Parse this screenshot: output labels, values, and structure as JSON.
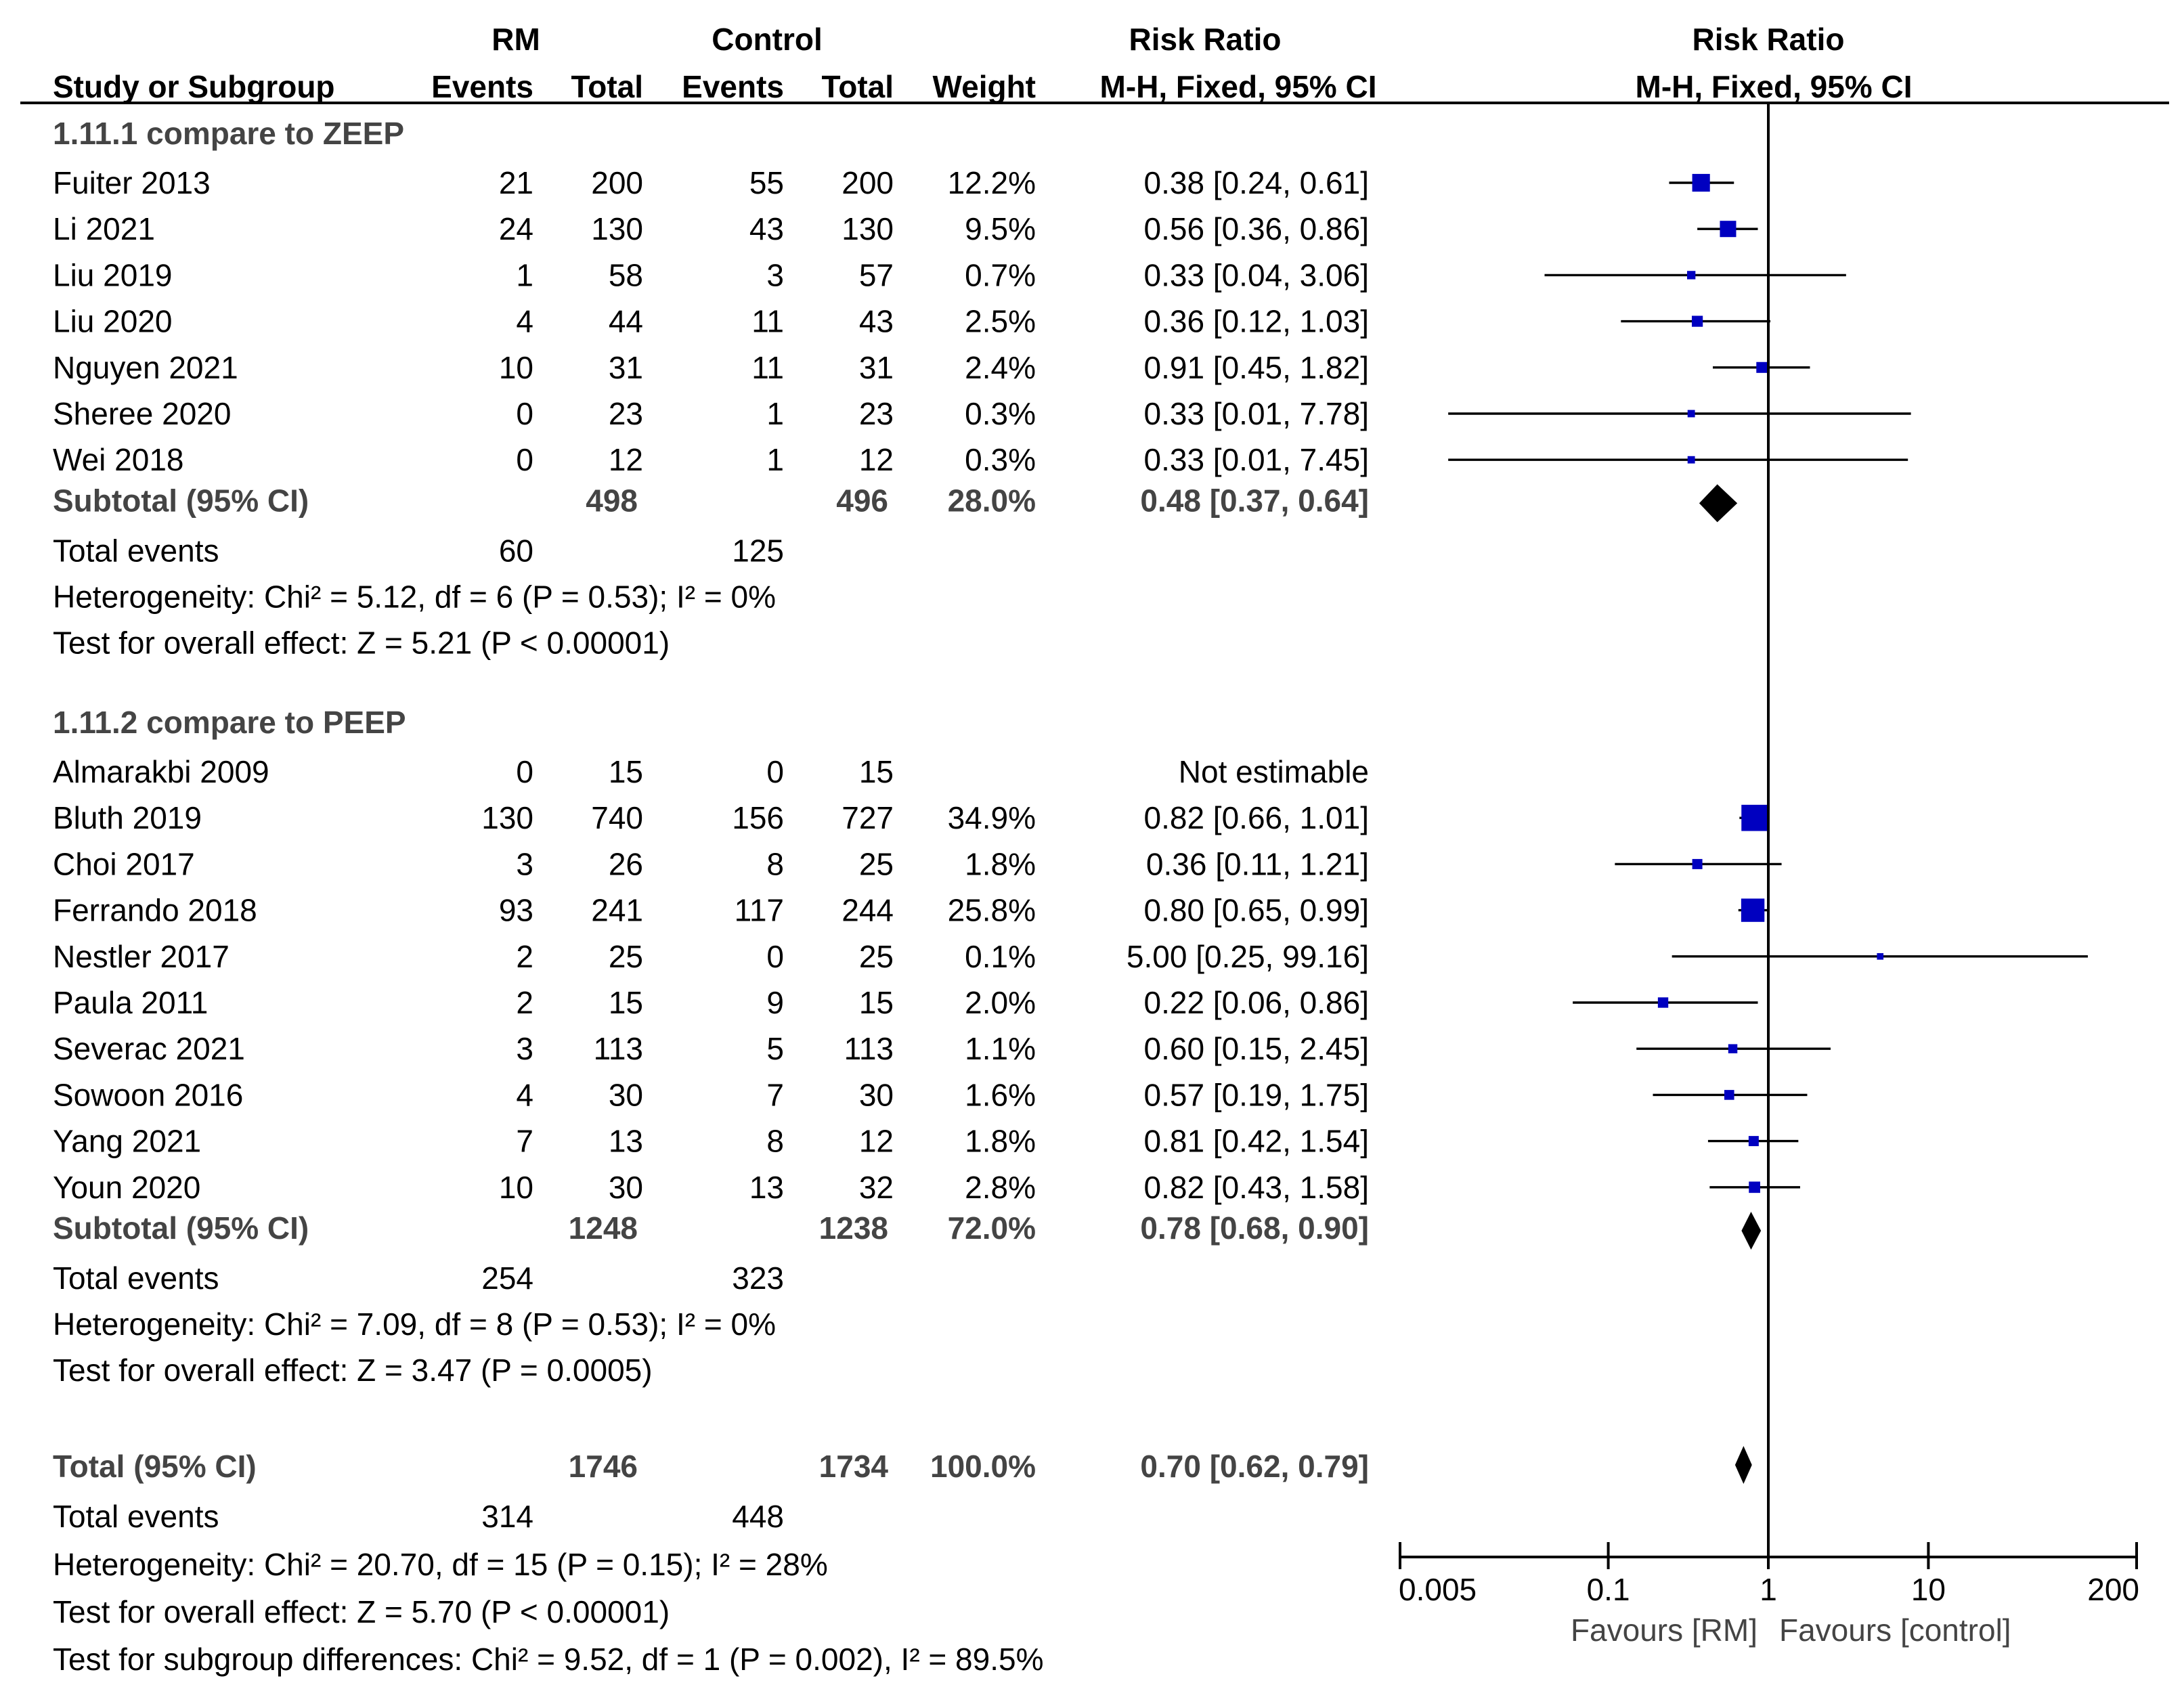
{
  "header": {
    "group1_label": "RM",
    "group2_label": "Control",
    "effect_col_label": "Risk Ratio",
    "effect_col_method": "M-H, Fixed, 95% CI",
    "plot_label": "Risk Ratio",
    "plot_method": "M-H, Fixed, 95% CI",
    "col_study": "Study or Subgroup",
    "col_events1": "Events",
    "col_total1": "Total",
    "col_events2": "Events",
    "col_total2": "Total",
    "col_weight": "Weight"
  },
  "subgroups": [
    {
      "title": "1.11.1 compare to ZEEP",
      "studies": [
        {
          "study": "Fuiter 2013",
          "events1": "21",
          "total1": "200",
          "events2": "55",
          "total2": "200",
          "weight": "12.2%",
          "ci_text": "0.38 [0.24, 0.61]",
          "rr": 0.38,
          "lo": 0.24,
          "hi": 0.61
        },
        {
          "study": "Li 2021",
          "events1": "24",
          "total1": "130",
          "events2": "43",
          "total2": "130",
          "weight": "9.5%",
          "ci_text": "0.56 [0.36, 0.86]",
          "rr": 0.56,
          "lo": 0.36,
          "hi": 0.86
        },
        {
          "study": "Liu 2019",
          "events1": "1",
          "total1": "58",
          "events2": "3",
          "total2": "57",
          "weight": "0.7%",
          "ci_text": "0.33 [0.04, 3.06]",
          "rr": 0.33,
          "lo": 0.04,
          "hi": 3.06
        },
        {
          "study": "Liu 2020",
          "events1": "4",
          "total1": "44",
          "events2": "11",
          "total2": "43",
          "weight": "2.5%",
          "ci_text": "0.36 [0.12, 1.03]",
          "rr": 0.36,
          "lo": 0.12,
          "hi": 1.03
        },
        {
          "study": "Nguyen 2021",
          "events1": "10",
          "total1": "31",
          "events2": "11",
          "total2": "31",
          "weight": "2.4%",
          "ci_text": "0.91 [0.45, 1.82]",
          "rr": 0.91,
          "lo": 0.45,
          "hi": 1.82
        },
        {
          "study": "Sheree 2020",
          "events1": "0",
          "total1": "23",
          "events2": "1",
          "total2": "23",
          "weight": "0.3%",
          "ci_text": "0.33 [0.01, 7.78]",
          "rr": 0.33,
          "lo": 0.01,
          "hi": 7.78
        },
        {
          "study": "Wei 2018",
          "events1": "0",
          "total1": "12",
          "events2": "1",
          "total2": "12",
          "weight": "0.3%",
          "ci_text": "0.33 [0.01, 7.45]",
          "rr": 0.33,
          "lo": 0.01,
          "hi": 7.45
        }
      ],
      "subtotal": {
        "label": "Subtotal (95% CI)",
        "total1": "498",
        "total2": "496",
        "weight": "28.0%",
        "ci_text": "0.48 [0.37, 0.64]",
        "rr": 0.48,
        "lo": 0.37,
        "hi": 0.64
      },
      "total_events": {
        "label": "Total events",
        "events1": "60",
        "events2": "125"
      },
      "heterogeneity": "Heterogeneity: Chi² = 5.12, df = 6 (P = 0.53); I² = 0%",
      "overall_test": "Test for overall effect: Z = 5.21 (P < 0.00001)"
    },
    {
      "title": "1.11.2 compare to PEEP",
      "studies": [
        {
          "study": "Almarakbi 2009",
          "events1": "0",
          "total1": "15",
          "events2": "0",
          "total2": "15",
          "weight": "",
          "ci_text": "Not estimable",
          "rr": null,
          "lo": null,
          "hi": null
        },
        {
          "study": "Bluth 2019",
          "events1": "130",
          "total1": "740",
          "events2": "156",
          "total2": "727",
          "weight": "34.9%",
          "ci_text": "0.82 [0.66, 1.01]",
          "rr": 0.82,
          "lo": 0.66,
          "hi": 1.01
        },
        {
          "study": "Choi 2017",
          "events1": "3",
          "total1": "26",
          "events2": "8",
          "total2": "25",
          "weight": "1.8%",
          "ci_text": "0.36 [0.11, 1.21]",
          "rr": 0.36,
          "lo": 0.11,
          "hi": 1.21
        },
        {
          "study": "Ferrando 2018",
          "events1": "93",
          "total1": "241",
          "events2": "117",
          "total2": "244",
          "weight": "25.8%",
          "ci_text": "0.80 [0.65, 0.99]",
          "rr": 0.8,
          "lo": 0.65,
          "hi": 0.99
        },
        {
          "study": "Nestler 2017",
          "events1": "2",
          "total1": "25",
          "events2": "0",
          "total2": "25",
          "weight": "0.1%",
          "ci_text": "5.00 [0.25, 99.16]",
          "rr": 5.0,
          "lo": 0.25,
          "hi": 99.16
        },
        {
          "study": "Paula 2011",
          "events1": "2",
          "total1": "15",
          "events2": "9",
          "total2": "15",
          "weight": "2.0%",
          "ci_text": "0.22 [0.06, 0.86]",
          "rr": 0.22,
          "lo": 0.06,
          "hi": 0.86
        },
        {
          "study": "Severac 2021",
          "events1": "3",
          "total1": "113",
          "events2": "5",
          "total2": "113",
          "weight": "1.1%",
          "ci_text": "0.60 [0.15, 2.45]",
          "rr": 0.6,
          "lo": 0.15,
          "hi": 2.45
        },
        {
          "study": "Sowoon 2016",
          "events1": "4",
          "total1": "30",
          "events2": "7",
          "total2": "30",
          "weight": "1.6%",
          "ci_text": "0.57 [0.19, 1.75]",
          "rr": 0.57,
          "lo": 0.19,
          "hi": 1.75
        },
        {
          "study": "Yang 2021",
          "events1": "7",
          "total1": "13",
          "events2": "8",
          "total2": "12",
          "weight": "1.8%",
          "ci_text": "0.81 [0.42, 1.54]",
          "rr": 0.81,
          "lo": 0.42,
          "hi": 1.54
        },
        {
          "study": "Youn 2020",
          "events1": "10",
          "total1": "30",
          "events2": "13",
          "total2": "32",
          "weight": "2.8%",
          "ci_text": "0.82 [0.43, 1.58]",
          "rr": 0.82,
          "lo": 0.43,
          "hi": 1.58
        }
      ],
      "subtotal": {
        "label": "Subtotal (95% CI)",
        "total1": "1248",
        "total2": "1238",
        "weight": "72.0%",
        "ci_text": "0.78 [0.68, 0.90]",
        "rr": 0.78,
        "lo": 0.68,
        "hi": 0.9
      },
      "total_events": {
        "label": "Total events",
        "events1": "254",
        "events2": "323"
      },
      "heterogeneity": "Heterogeneity: Chi² = 7.09, df = 8 (P = 0.53); I² = 0%",
      "overall_test": "Test for overall effect: Z = 3.47 (P = 0.0005)"
    }
  ],
  "overall": {
    "label": "Total (95% CI)",
    "total1": "1746",
    "total2": "1734",
    "weight": "100.0%",
    "ci_text": "0.70 [0.62, 0.79]",
    "rr": 0.7,
    "lo": 0.62,
    "hi": 0.79,
    "total_events_label": "Total events",
    "events1": "314",
    "events2": "448",
    "heterogeneity": "Heterogeneity: Chi² = 20.70, df = 15 (P = 0.15); I² = 28%",
    "overall_test": "Test for overall effect: Z = 5.70 (P < 0.00001)",
    "subgroup_test": "Test for subgroup differences: Chi² = 9.52, df = 1 (P = 0.002), I² = 89.5%"
  },
  "axis": {
    "ticks": [
      "0.005",
      "0.1",
      "1",
      "10",
      "200"
    ],
    "tick_values": [
      0.005,
      0.1,
      1,
      10,
      200
    ],
    "scale": "log",
    "favours_left": "Favours [RM]",
    "favours_right": "Favours [control]"
  },
  "colors": {
    "box": "#0000c0",
    "diamond": "#000000",
    "subtotal_text": "#444444"
  },
  "chart_data": {
    "type": "forest",
    "scale": "log",
    "xlim": [
      0.005,
      200
    ],
    "null_value": 1,
    "measure": "Risk Ratio",
    "method": "M-H, Fixed, 95% CI"
  }
}
